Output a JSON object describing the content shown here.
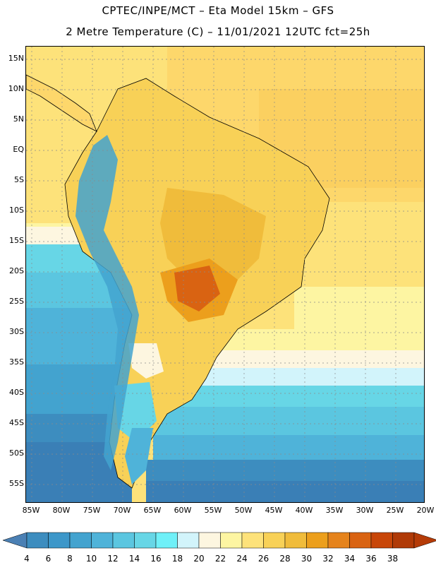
{
  "header": {
    "line1": "CPTEC/INPE/MCT –  Eta Model 15km – GFS",
    "line2": "2 Metre Temperature (C) – 11/01/2021 12UTC fct=25h"
  },
  "map": {
    "lat_labels": [
      "15N",
      "10N",
      "5N",
      "EQ",
      "5S",
      "10S",
      "15S",
      "20S",
      "25S",
      "30S",
      "35S",
      "40S",
      "45S",
      "50S",
      "55S"
    ],
    "lon_labels": [
      "85W",
      "80W",
      "75W",
      "70W",
      "65W",
      "60W",
      "55W",
      "50W",
      "45W",
      "40W",
      "35W",
      "30W",
      "25W",
      "20W"
    ]
  },
  "colorbar": {
    "labels": [
      "4",
      "6",
      "8",
      "10",
      "12",
      "14",
      "16",
      "18",
      "20",
      "22",
      "24",
      "26",
      "28",
      "30",
      "32",
      "34",
      "36",
      "38"
    ],
    "colors": [
      "#3d8dbf",
      "#3d97c9",
      "#43a3cf",
      "#4fb3d9",
      "#5bc6e0",
      "#67d6e6",
      "#6ff0f8",
      "#d2f4fb",
      "#fdf6e0",
      "#fdf5a2",
      "#fde27a",
      "#f8d157",
      "#f0bc3b",
      "#ec9f1c",
      "#e5831c",
      "#d96312",
      "#c84608",
      "#b03a07"
    ],
    "left_color": "#4b80b4",
    "right_color": "#b53b07"
  }
}
